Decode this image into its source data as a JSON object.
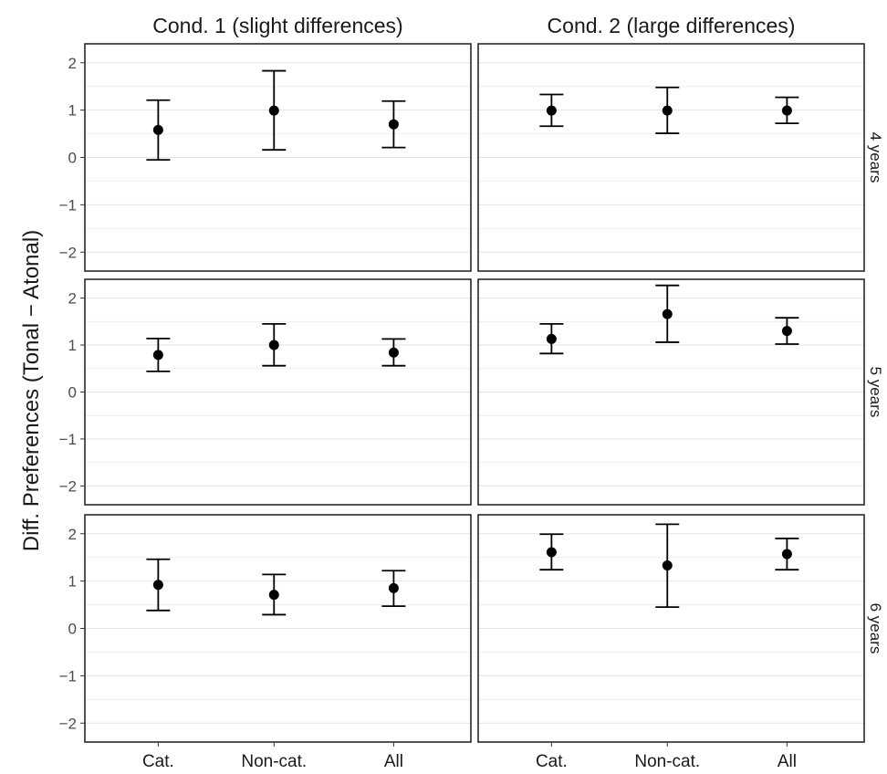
{
  "chart_data": {
    "type": "scatter",
    "subtype": "point-with-error-bars, faceted grid",
    "ylabel": "Diff. Preferences (Tonal − Atonal)",
    "xlabel": "",
    "categories": [
      "Cat.",
      "Non-cat.",
      "All"
    ],
    "columns": [
      "Cond. 1 (slight differences)",
      "Cond. 2 (large differences)"
    ],
    "rows": [
      "4 years",
      "5 years",
      "6 years"
    ],
    "ylim": [
      -2.4,
      2.4
    ],
    "yticks": [
      -2,
      -1,
      0,
      1,
      2
    ],
    "ytick_labels": [
      "−2",
      "−1",
      "0",
      "1",
      "2"
    ],
    "grid": true,
    "panels": [
      {
        "row": 0,
        "col": 0,
        "points": [
          {
            "category": "Cat.",
            "y": 0.58,
            "lower": -0.05,
            "upper": 1.21
          },
          {
            "category": "Non-cat.",
            "y": 0.99,
            "lower": 0.16,
            "upper": 1.83
          },
          {
            "category": "All",
            "y": 0.7,
            "lower": 0.21,
            "upper": 1.19
          }
        ]
      },
      {
        "row": 0,
        "col": 1,
        "points": [
          {
            "category": "Cat.",
            "y": 0.99,
            "lower": 0.66,
            "upper": 1.33
          },
          {
            "category": "Non-cat.",
            "y": 0.99,
            "lower": 0.51,
            "upper": 1.48
          },
          {
            "category": "All",
            "y": 0.99,
            "lower": 0.72,
            "upper": 1.27
          }
        ]
      },
      {
        "row": 1,
        "col": 0,
        "points": [
          {
            "category": "Cat.",
            "y": 0.79,
            "lower": 0.44,
            "upper": 1.14
          },
          {
            "category": "Non-cat.",
            "y": 1.0,
            "lower": 0.56,
            "upper": 1.45
          },
          {
            "category": "All",
            "y": 0.84,
            "lower": 0.56,
            "upper": 1.13
          }
        ]
      },
      {
        "row": 1,
        "col": 1,
        "points": [
          {
            "category": "Cat.",
            "y": 1.13,
            "lower": 0.82,
            "upper": 1.45
          },
          {
            "category": "Non-cat.",
            "y": 1.66,
            "lower": 1.06,
            "upper": 2.27
          },
          {
            "category": "All",
            "y": 1.3,
            "lower": 1.02,
            "upper": 1.58
          }
        ]
      },
      {
        "row": 2,
        "col": 0,
        "points": [
          {
            "category": "Cat.",
            "y": 0.92,
            "lower": 0.38,
            "upper": 1.46
          },
          {
            "category": "Non-cat.",
            "y": 0.71,
            "lower": 0.29,
            "upper": 1.14
          },
          {
            "category": "All",
            "y": 0.85,
            "lower": 0.47,
            "upper": 1.22
          }
        ]
      },
      {
        "row": 2,
        "col": 1,
        "points": [
          {
            "category": "Cat.",
            "y": 1.61,
            "lower": 1.24,
            "upper": 1.99
          },
          {
            "category": "Non-cat.",
            "y": 1.33,
            "lower": 0.45,
            "upper": 2.2
          },
          {
            "category": "All",
            "y": 1.57,
            "lower": 1.24,
            "upper": 1.9
          }
        ]
      }
    ],
    "colors": {
      "point": "#000000",
      "frame": "#1a1a1a",
      "grid": "#e3e3e3"
    }
  }
}
